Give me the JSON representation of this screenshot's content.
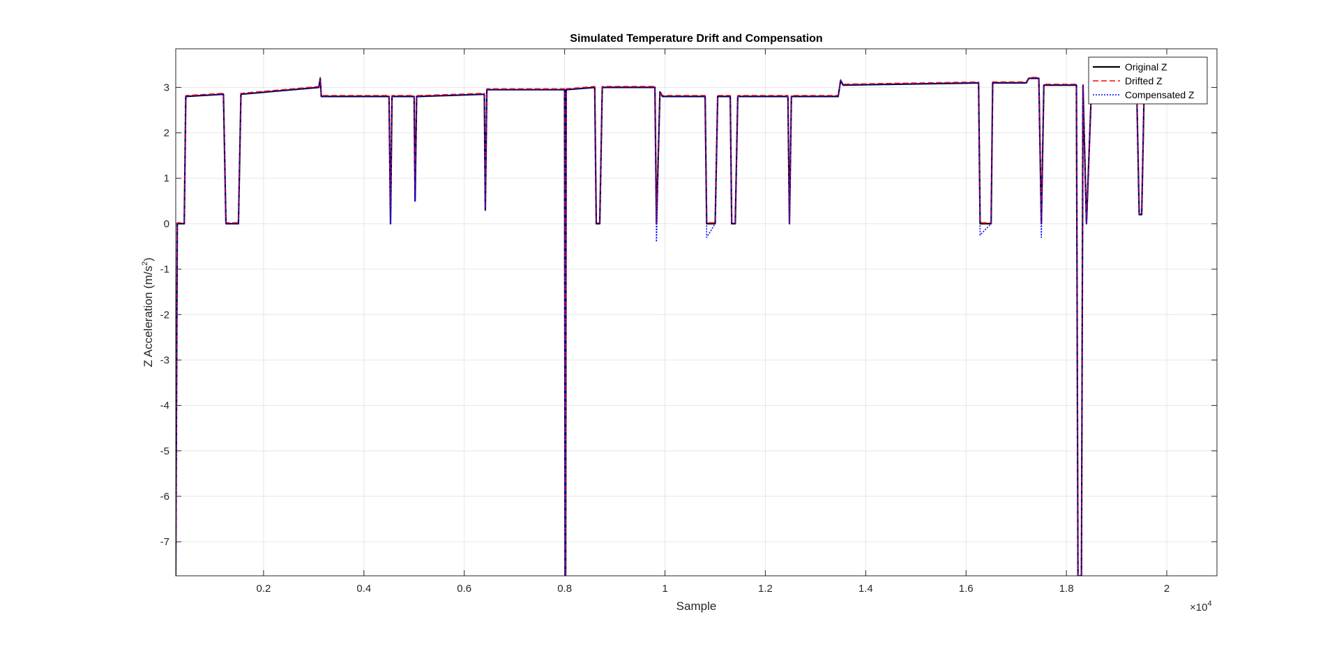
{
  "chart_data": {
    "type": "line",
    "title": "Simulated Temperature Drift and Compensation",
    "xlabel": "Sample",
    "ylabel_main": "Z Acceleration (m/s",
    "ylabel_sup": "2",
    "ylabel_close": ")",
    "x_exponent_base": "×10",
    "x_exponent_power": "4",
    "xlim": [
      250,
      21000
    ],
    "ylim": [
      -7.75,
      3.85
    ],
    "x_ticks": [
      2000,
      4000,
      6000,
      8000,
      10000,
      12000,
      14000,
      16000,
      18000,
      20000
    ],
    "x_tick_labels": [
      "0.2",
      "0.4",
      "0.6",
      "0.8",
      "1",
      "1.2",
      "1.4",
      "1.6",
      "1.8",
      "2"
    ],
    "y_ticks": [
      -7,
      -6,
      -5,
      -4,
      -3,
      -2,
      -1,
      0,
      1,
      2,
      3
    ],
    "y_tick_labels": [
      "-7",
      "-6",
      "-5",
      "-4",
      "-3",
      "-2",
      "-1",
      "0",
      "1",
      "2",
      "3"
    ],
    "grid": true,
    "legend_position": "top-right",
    "colors": {
      "original": "#000000",
      "drifted": "#ff0000",
      "compensated": "#0000ff",
      "grid": "#e6e6e6",
      "axis": "#262626"
    },
    "series": [
      {
        "name": "Original Z",
        "style": "solid",
        "x": [
          250,
          280,
          300,
          420,
          450,
          1200,
          1250,
          1500,
          1550,
          3100,
          3130,
          3150,
          3200,
          4500,
          4530,
          4560,
          5000,
          5020,
          5050,
          5100,
          6400,
          6420,
          6450,
          8000,
          8010,
          8020,
          8030,
          8600,
          8630,
          8700,
          8750,
          9800,
          9830,
          9900,
          9950,
          10800,
          10830,
          11000,
          11050,
          11300,
          11330,
          11400,
          11450,
          12450,
          12480,
          12520,
          13450,
          13500,
          13550,
          16250,
          16280,
          16500,
          16530,
          17200,
          17250,
          17450,
          17500,
          17550,
          18200,
          18230,
          18300,
          18330,
          18400,
          18500,
          19400,
          19450,
          19500,
          19550
        ],
        "y": [
          -7.75,
          0,
          0,
          0,
          2.8,
          2.85,
          0,
          0,
          2.85,
          3.0,
          3.2,
          2.8,
          2.8,
          2.8,
          0,
          2.8,
          2.8,
          0.5,
          2.8,
          2.8,
          2.85,
          0.3,
          2.95,
          2.95,
          -7.75,
          -7.75,
          2.95,
          3.0,
          0,
          0,
          3.0,
          3.0,
          0,
          2.9,
          2.8,
          2.8,
          0,
          0,
          2.8,
          2.8,
          0,
          0,
          2.8,
          2.8,
          0,
          2.8,
          2.8,
          3.15,
          3.05,
          3.1,
          0,
          0,
          3.1,
          3.1,
          3.2,
          3.2,
          0,
          3.05,
          3.05,
          -7.75,
          -7.75,
          3.05,
          0,
          3.0,
          3.0,
          0.2,
          0.2,
          3.0
        ]
      },
      {
        "name": "Drifted Z",
        "style": "dashed",
        "x": [
          250,
          280,
          300,
          420,
          450,
          1200,
          1250,
          1500,
          1550,
          3100,
          3130,
          3150,
          3200,
          4500,
          4530,
          4560,
          5000,
          5020,
          5050,
          5100,
          6400,
          6420,
          6450,
          8000,
          8010,
          8020,
          8030,
          8600,
          8630,
          8700,
          8750,
          9800,
          9830,
          9900,
          9950,
          10800,
          10830,
          11000,
          11050,
          11300,
          11330,
          11400,
          11450,
          12450,
          12480,
          12520,
          13450,
          13500,
          13550,
          16250,
          16280,
          16500,
          16530,
          17200,
          17250,
          17450,
          17500,
          17550,
          18200,
          18230,
          18300,
          18330,
          18400,
          18500,
          19400,
          19450,
          19500,
          19550
        ],
        "y": [
          -7.75,
          0.02,
          0.02,
          0.02,
          2.82,
          2.87,
          0.02,
          0.02,
          2.87,
          3.02,
          3.22,
          2.82,
          2.82,
          2.82,
          0.02,
          2.82,
          2.82,
          0.52,
          2.82,
          2.82,
          2.87,
          0.32,
          2.97,
          2.97,
          -7.75,
          -7.75,
          2.97,
          3.02,
          0.02,
          0.02,
          3.02,
          3.02,
          0.02,
          2.92,
          2.82,
          2.82,
          0.02,
          0.02,
          2.82,
          2.82,
          0.02,
          0.02,
          2.82,
          2.82,
          0.02,
          2.82,
          2.82,
          3.17,
          3.07,
          3.12,
          0.02,
          0.02,
          3.12,
          3.12,
          3.22,
          3.22,
          0.02,
          3.07,
          3.07,
          -7.75,
          -7.75,
          3.07,
          0.02,
          3.02,
          3.02,
          0.22,
          0.22,
          3.02
        ]
      },
      {
        "name": "Compensated Z",
        "style": "dotted",
        "x": [
          250,
          280,
          300,
          420,
          450,
          1200,
          1250,
          1500,
          1550,
          3100,
          3130,
          3150,
          3200,
          4500,
          4530,
          4560,
          5000,
          5020,
          5050,
          5100,
          6400,
          6420,
          6450,
          8000,
          8010,
          8020,
          8030,
          8600,
          8630,
          8700,
          8750,
          9800,
          9830,
          9900,
          9950,
          10800,
          10830,
          11000,
          11050,
          11300,
          11330,
          11400,
          11450,
          12450,
          12480,
          12520,
          13450,
          13500,
          13550,
          16250,
          16280,
          16500,
          16530,
          17200,
          17250,
          17450,
          17500,
          17550,
          18200,
          18230,
          18300,
          18330,
          18400,
          18500,
          19400,
          19450,
          19500,
          19550
        ],
        "y": [
          -7.75,
          0,
          0,
          0,
          2.8,
          2.85,
          0,
          0,
          2.85,
          3.0,
          3.2,
          2.8,
          2.8,
          2.8,
          0,
          2.8,
          2.8,
          0.5,
          2.8,
          2.8,
          2.85,
          0.3,
          2.95,
          2.95,
          -7.75,
          -7.75,
          2.95,
          3.0,
          0,
          0,
          3.0,
          3.0,
          -0.4,
          2.9,
          2.8,
          2.8,
          -0.3,
          0,
          2.8,
          2.8,
          0,
          0,
          2.8,
          2.8,
          0,
          2.8,
          2.8,
          3.15,
          3.05,
          3.1,
          -0.25,
          0,
          3.1,
          3.1,
          3.2,
          3.2,
          -0.3,
          3.05,
          3.05,
          -7.75,
          -7.75,
          3.05,
          0,
          3.0,
          3.0,
          0.2,
          0.2,
          3.0
        ]
      }
    ]
  }
}
